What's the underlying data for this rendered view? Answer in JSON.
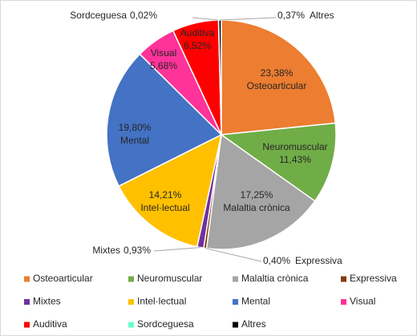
{
  "chart_data": {
    "type": "pie",
    "categories": [
      "Osteoarticular",
      "Neuromuscular",
      "Malaltia crònica",
      "Expressiva",
      "Mixtes",
      "Intel·lectual",
      "Mental",
      "Visual",
      "Auditiva",
      "Sordceguesa",
      "Altres"
    ],
    "values": [
      23.38,
      11.43,
      17.25,
      0.4,
      0.93,
      14.21,
      19.8,
      5.68,
      6.52,
      0.02,
      0.37
    ],
    "value_labels": [
      "23,38%",
      "11,43%",
      "17,25%",
      "0,40%",
      "0,93%",
      "14,21%",
      "19,80%",
      "5,68%",
      "6,52%",
      "0,02%",
      "0,37%"
    ],
    "colors": [
      "#ED7D31",
      "#70AD47",
      "#A5A5A5",
      "#843C0C",
      "#7030A0",
      "#FFC000",
      "#4472C4",
      "#FF3399",
      "#FF0000",
      "#66FFCC",
      "#000000"
    ],
    "legend": "bottom"
  }
}
